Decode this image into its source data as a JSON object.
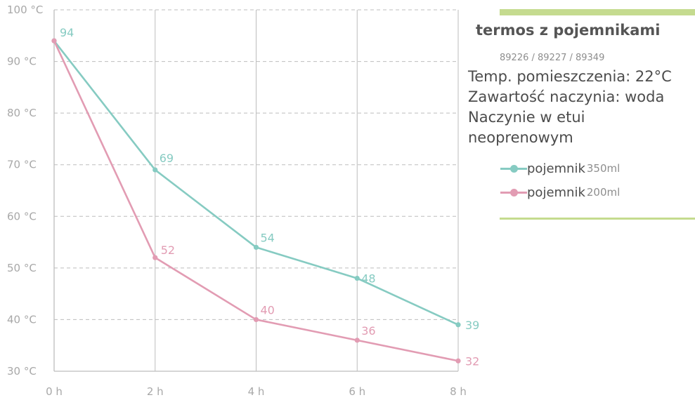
{
  "colors": {
    "series_350": "#86cbc2",
    "series_200": "#e29cb3",
    "accent_bar": "#c5db8f",
    "grid": "#bdbdbd",
    "tick_text": "#a8a8a8"
  },
  "info": {
    "title": "termos z pojemnikami",
    "codes": "89226 / 89227 / 89349",
    "lines": [
      "Temp. pomieszczenia: 22°C",
      "Zawartość naczynia: woda",
      "Naczynie w etui",
      "neoprenowym"
    ]
  },
  "legend": [
    {
      "name": "pojemnik",
      "size": "350ml",
      "color": "#86cbc2"
    },
    {
      "name": "pojemnik",
      "size": "200ml",
      "color": "#e29cb3"
    }
  ],
  "chart_data": {
    "type": "line",
    "title": "",
    "xlabel": "",
    "ylabel": "",
    "x": [
      "0 h",
      "2 h",
      "4 h",
      "6 h",
      "8 h"
    ],
    "y_ticks": [
      "30 °C",
      "40 °C",
      "50 °C",
      "60 °C",
      "70 °C",
      "80 °C",
      "90 °C",
      "100 °C"
    ],
    "ylim": [
      30,
      100
    ],
    "grid": true,
    "series": [
      {
        "name": "pojemnik 350ml",
        "color": "#86cbc2",
        "values": [
          94,
          69,
          54,
          48,
          39
        ],
        "labels": [
          "94",
          "69",
          "54",
          "48",
          "39"
        ]
      },
      {
        "name": "pojemnik 200ml",
        "color": "#e29cb3",
        "values": [
          94,
          52,
          40,
          36,
          32
        ],
        "labels": [
          "",
          "52",
          "40",
          "36",
          "32"
        ]
      }
    ]
  }
}
